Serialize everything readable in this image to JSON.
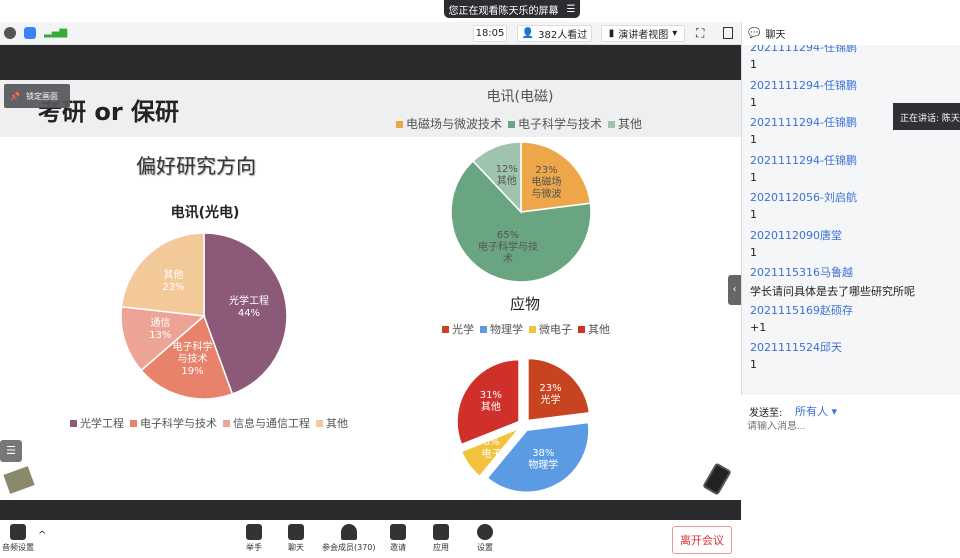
{
  "banner": {
    "text": "您正在观看陈天乐的屏幕",
    "menu_icon": "menu-icon"
  },
  "toolbar": {
    "time": "18:05",
    "viewers": "382人看过",
    "view_mode": "演讲者视图"
  },
  "slide": {
    "lock_label": "锁定画面",
    "title": "考研 or 保研",
    "subtitle": "偏好研究方向",
    "charts": [
      {
        "title": "电讯(光电)",
        "type": "pie",
        "slices": [
          {
            "label": "光学工程",
            "legend": "光学工程",
            "value": 44,
            "color": "#8c5a78"
          },
          {
            "label": "电子科学\n与技术",
            "legend": "电子科学与技术",
            "value": 19,
            "color": "#e8826a"
          },
          {
            "label": "通信",
            "legend": "信息与通信工程",
            "value": 13,
            "color": "#eda396"
          },
          {
            "label": "其他",
            "legend": "其他",
            "value": 23,
            "color": "#f4c99a"
          }
        ]
      },
      {
        "title": "电讯(电磁)",
        "type": "pie",
        "slices": [
          {
            "label": "电磁场\n与微波",
            "legend": "电磁场与微波技术",
            "value": 23,
            "color": "#eda64a"
          },
          {
            "label": "电子科学与技\n术",
            "legend": "电子科学与技术",
            "value": 65,
            "color": "#6aa582"
          },
          {
            "label": "其他",
            "legend": "其他",
            "value": 12,
            "color": "#9ec4ae"
          }
        ]
      },
      {
        "title": "应物",
        "type": "pie",
        "slices": [
          {
            "label": "光学",
            "legend": "光学",
            "value": 23,
            "color": "#c8431f"
          },
          {
            "label": "物理学",
            "legend": "物理学",
            "value": 38,
            "color": "#5b9be3"
          },
          {
            "label": "电子",
            "legend": "微电子",
            "value": 8,
            "color": "#f2c23d"
          },
          {
            "label": "其他",
            "legend": "其他",
            "value": 31,
            "color": "#d0302a"
          }
        ]
      }
    ]
  },
  "chat": {
    "title": "聊天",
    "messages": [
      {
        "name": "2021111294-任锦鹏",
        "text": "1"
      },
      {
        "name": "2021111294-任锦鹏",
        "text": "1"
      },
      {
        "name": "2021111294-任锦鹏",
        "text": "1"
      },
      {
        "name": "2021111294-任锦鹏",
        "text": "1"
      },
      {
        "name": "2020112056-刘启航",
        "text": "1"
      },
      {
        "name": "2020112090唐堂",
        "text": "1"
      },
      {
        "name": "2021115316马鲁越",
        "text": "学长请问具体是去了哪些研究所呢"
      },
      {
        "name": "2021115169赵硕存",
        "text": "+1"
      },
      {
        "name": "2021111524邱天",
        "text": "1"
      }
    ],
    "send_to_label": "发送至:",
    "send_to_value": "所有人",
    "input_placeholder": "请输入消息..."
  },
  "speaker": "正在讲话: 陈天乐",
  "bottom": {
    "audio": "音频设置",
    "raise": "举手",
    "chat": "聊天",
    "members": "参会成员(370)",
    "invite": "邀请",
    "apps": "应用",
    "settings": "设置",
    "leave": "离开会议"
  }
}
